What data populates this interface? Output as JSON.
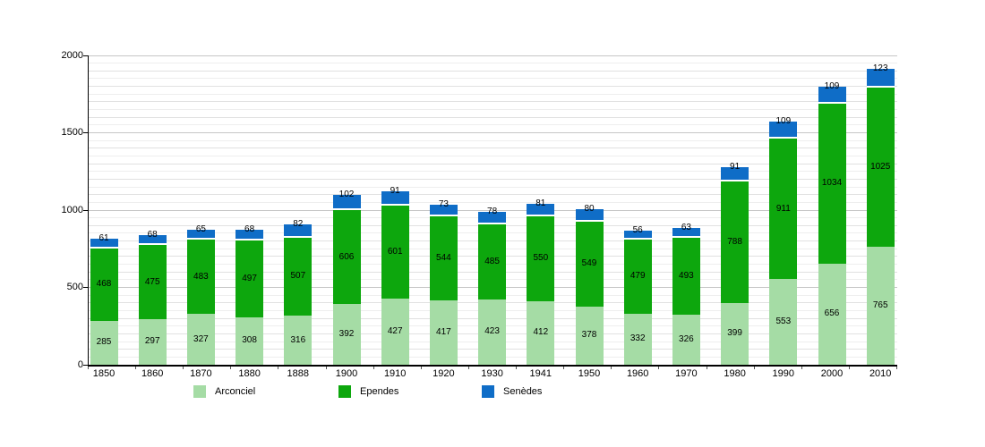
{
  "chart_data": {
    "type": "bar",
    "stacked": true,
    "title": "",
    "categories": [
      "1850",
      "1860",
      "1870",
      "1880",
      "1888",
      "1900",
      "1910",
      "1920",
      "1930",
      "1941",
      "1950",
      "1960",
      "1970",
      "1980",
      "1990",
      "2000",
      "2010"
    ],
    "series": [
      {
        "name": "Arconciel",
        "color": "#a5dca5",
        "values": [
          285,
          297,
          327,
          308,
          316,
          392,
          427,
          417,
          423,
          412,
          378,
          332,
          326,
          399,
          553,
          656,
          765
        ]
      },
      {
        "name": "Ependes",
        "color": "#0da70d",
        "values": [
          468,
          475,
          483,
          497,
          507,
          606,
          601,
          544,
          485,
          550,
          549,
          479,
          493,
          788,
          911,
          1034,
          1025
        ]
      },
      {
        "name": "Senèdes",
        "color": "#0f6dc7",
        "values": [
          61,
          68,
          65,
          68,
          82,
          102,
          91,
          73,
          78,
          81,
          80,
          56,
          63,
          91,
          109,
          109,
          123
        ]
      }
    ],
    "ylim": [
      0,
      2000
    ],
    "yticks": [
      0,
      500,
      1000,
      1500,
      2000
    ],
    "minor_grid_step": 50,
    "grid": true,
    "legend_position": "bottom",
    "axis_color": "#000000",
    "gridline_color_major": "#c6c6c6",
    "gridline_color_minor": "#eeeeee"
  }
}
